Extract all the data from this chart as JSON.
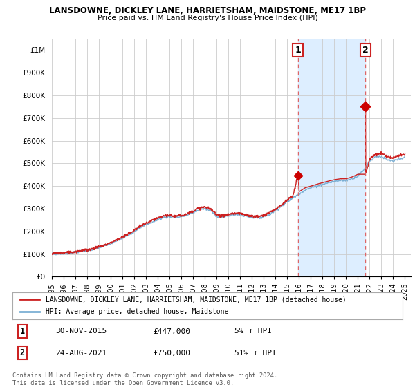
{
  "title": "LANSDOWNE, DICKLEY LANE, HARRIETSHAM, MAIDSTONE, ME17 1BP",
  "subtitle": "Price paid vs. HM Land Registry's House Price Index (HPI)",
  "ylabel_ticks": [
    "£0",
    "£100K",
    "£200K",
    "£300K",
    "£400K",
    "£500K",
    "£600K",
    "£700K",
    "£800K",
    "£900K",
    "£1M"
  ],
  "ytick_vals": [
    0,
    100000,
    200000,
    300000,
    400000,
    500000,
    600000,
    700000,
    800000,
    900000,
    1000000
  ],
  "ylim": [
    0,
    1050000
  ],
  "sale1_date": 2015.92,
  "sale1_price": 447000,
  "sale1_label": "1",
  "sale2_date": 2021.65,
  "sale2_price": 750000,
  "sale2_label": "2",
  "hpi_color": "#7aafd4",
  "price_color": "#cc2222",
  "vline_color": "#dd6666",
  "dot_color": "#cc0000",
  "shade_color": "#ddeeff",
  "legend_label1": "LANSDOWNE, DICKLEY LANE, HARRIETSHAM, MAIDSTONE, ME17 1BP (detached house)",
  "legend_label2": "HPI: Average price, detached house, Maidstone",
  "table_row1": [
    "1",
    "30-NOV-2015",
    "£447,000",
    "5% ↑ HPI"
  ],
  "table_row2": [
    "2",
    "24-AUG-2021",
    "£750,000",
    "51% ↑ HPI"
  ],
  "footer": "Contains HM Land Registry data © Crown copyright and database right 2024.\nThis data is licensed under the Open Government Licence v3.0.",
  "background_color": "#ffffff",
  "grid_color": "#cccccc"
}
